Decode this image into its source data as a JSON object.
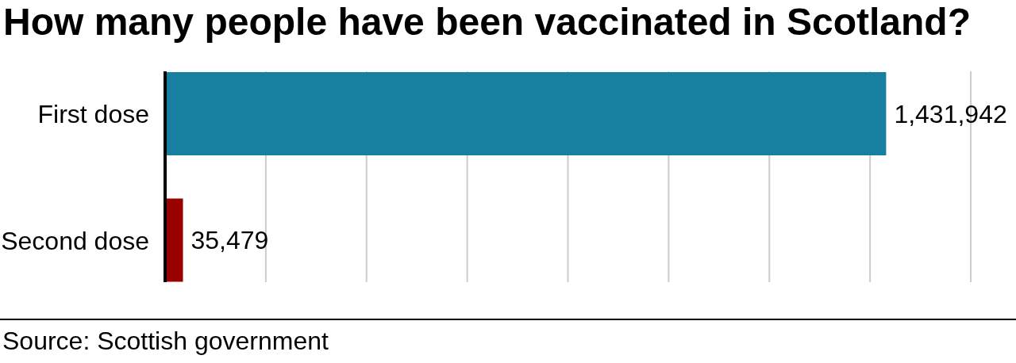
{
  "chart_data": {
    "type": "bar",
    "orientation": "horizontal",
    "title": "How many people have been vaccinated in Scotland?",
    "categories": [
      "First dose",
      "Second dose"
    ],
    "values": [
      1431942,
      35479
    ],
    "colors": [
      "#1780a1",
      "#990000"
    ],
    "value_labels": [
      "1,431,942",
      "35,479"
    ],
    "xlim": [
      0,
      1600000
    ],
    "xticks": [
      {
        "value": 200000,
        "label": null
      },
      {
        "value": 400000,
        "label": null
      },
      {
        "value": 600000,
        "label": null
      },
      {
        "value": 800000,
        "label": null
      },
      {
        "value": 1000000,
        "label": null
      },
      {
        "value": 1200000,
        "label": null
      },
      {
        "value": 1400000,
        "label": null
      },
      {
        "value": 1600000,
        "label": null
      }
    ],
    "grid": "x",
    "tick_labels": "y",
    "annotations": [
      "Source: Scottish government"
    ]
  }
}
